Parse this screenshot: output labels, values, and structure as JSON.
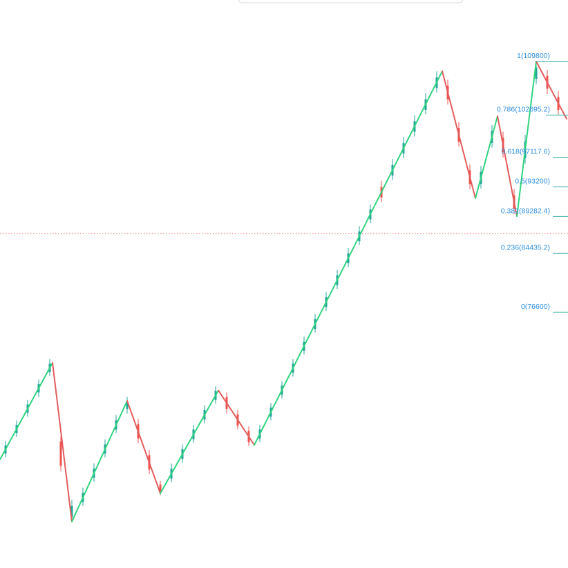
{
  "chart_data": {
    "type": "candlestick",
    "xlim": [
      0,
      205
    ],
    "ylim": [
      42760,
      117940
    ],
    "up_color": "#26a69a",
    "down_color": "#ef5350",
    "candles": {
      "x": [
        2,
        6,
        10,
        14,
        18,
        22,
        26,
        30,
        34,
        38,
        42,
        46,
        50,
        54,
        58,
        62,
        66,
        70,
        74,
        78,
        82,
        86,
        90,
        94,
        98,
        102,
        106,
        110,
        114,
        118,
        122,
        126,
        130,
        134,
        138,
        142,
        146,
        150,
        154,
        158,
        162,
        166,
        170,
        174,
        178,
        182,
        186,
        190,
        194,
        198,
        202
      ],
      "open": [
        57900,
        60600,
        63300,
        66000,
        68700,
        59500,
        49500,
        51500,
        54700,
        57900,
        61100,
        63800,
        61800,
        57700,
        53800,
        54600,
        57200,
        59800,
        62400,
        65000,
        65400,
        63100,
        60900,
        59900,
        62800,
        65700,
        68600,
        71500,
        74400,
        77300,
        80200,
        83100,
        86000,
        88900,
        93200,
        94700,
        97600,
        100500,
        103400,
        106300,
        106600,
        101000,
        95400,
        93600,
        99000,
        99700,
        92100,
        97000,
        107500,
        107900,
        105100
      ],
      "high": [
        59600,
        62300,
        65000,
        67700,
        70400,
        60200,
        51800,
        53400,
        56600,
        59800,
        63000,
        65400,
        62500,
        58400,
        54300,
        56600,
        59100,
        61700,
        64300,
        66800,
        66000,
        63700,
        61500,
        61700,
        64600,
        67500,
        70400,
        73400,
        76400,
        79300,
        82200,
        85100,
        88000,
        90900,
        94000,
        96900,
        99800,
        102700,
        105600,
        108500,
        107400,
        101800,
        96200,
        96000,
        101400,
        100500,
        92900,
        100100,
        109800,
        108700,
        105900
      ],
      "low": [
        57400,
        60100,
        62800,
        65400,
        68200,
        55600,
        48900,
        51000,
        54200,
        57400,
        60600,
        63200,
        59300,
        55200,
        52400,
        54100,
        56700,
        59300,
        61900,
        64500,
        63200,
        61100,
        58900,
        59400,
        62300,
        65200,
        68100,
        71000,
        73900,
        76800,
        79700,
        82600,
        85500,
        88400,
        91200,
        94100,
        97000,
        99900,
        102800,
        105700,
        104100,
        98500,
        92900,
        93000,
        98400,
        97100,
        89600,
        96300,
        106800,
        105500,
        102700
      ],
      "close": [
        59000,
        61700,
        64400,
        67100,
        69800,
        56300,
        51000,
        52700,
        55900,
        59100,
        62300,
        64700,
        59900,
        55800,
        52900,
        55900,
        58500,
        61100,
        63700,
        66200,
        63800,
        61600,
        59400,
        61100,
        64000,
        66900,
        69800,
        72700,
        75700,
        78600,
        81500,
        84400,
        87300,
        90200,
        91800,
        96100,
        99000,
        101900,
        104800,
        107700,
        104800,
        99200,
        93600,
        95200,
        100600,
        97800,
        90300,
        99200,
        109000,
        106200,
        103400
      ]
    },
    "zigzag": {
      "x": [
        0,
        19,
        26,
        46,
        58,
        79,
        92,
        160,
        172,
        180,
        187,
        194,
        205
      ],
      "values": [
        57120,
        69920,
        48890,
        64890,
        52640,
        66270,
        59040,
        108520,
        91690,
        102570,
        89310,
        109800,
        102210
      ],
      "up_color": "#2fd47f",
      "down_color": "#e25c5c"
    },
    "fib_levels": [
      {
        "value": 109800,
        "label": "1(109800)"
      },
      {
        "value": 102695.2,
        "label": "0.786(102695.2)"
      },
      {
        "value": 97117.6,
        "label": "0.618(97117.6)"
      },
      {
        "value": 93200,
        "label": "0.5(93200)"
      },
      {
        "value": 89282.4,
        "label": "0.382(89282.4)"
      },
      {
        "value": 84435.2,
        "label": "0.236(84435.2)"
      },
      {
        "value": 76600,
        "label": "0(76600)"
      }
    ],
    "fib_text_color": "#2f8fe0",
    "fib_line_color": "#26a69a",
    "price_line": 87030,
    "price_line_color": "#ef5350"
  }
}
